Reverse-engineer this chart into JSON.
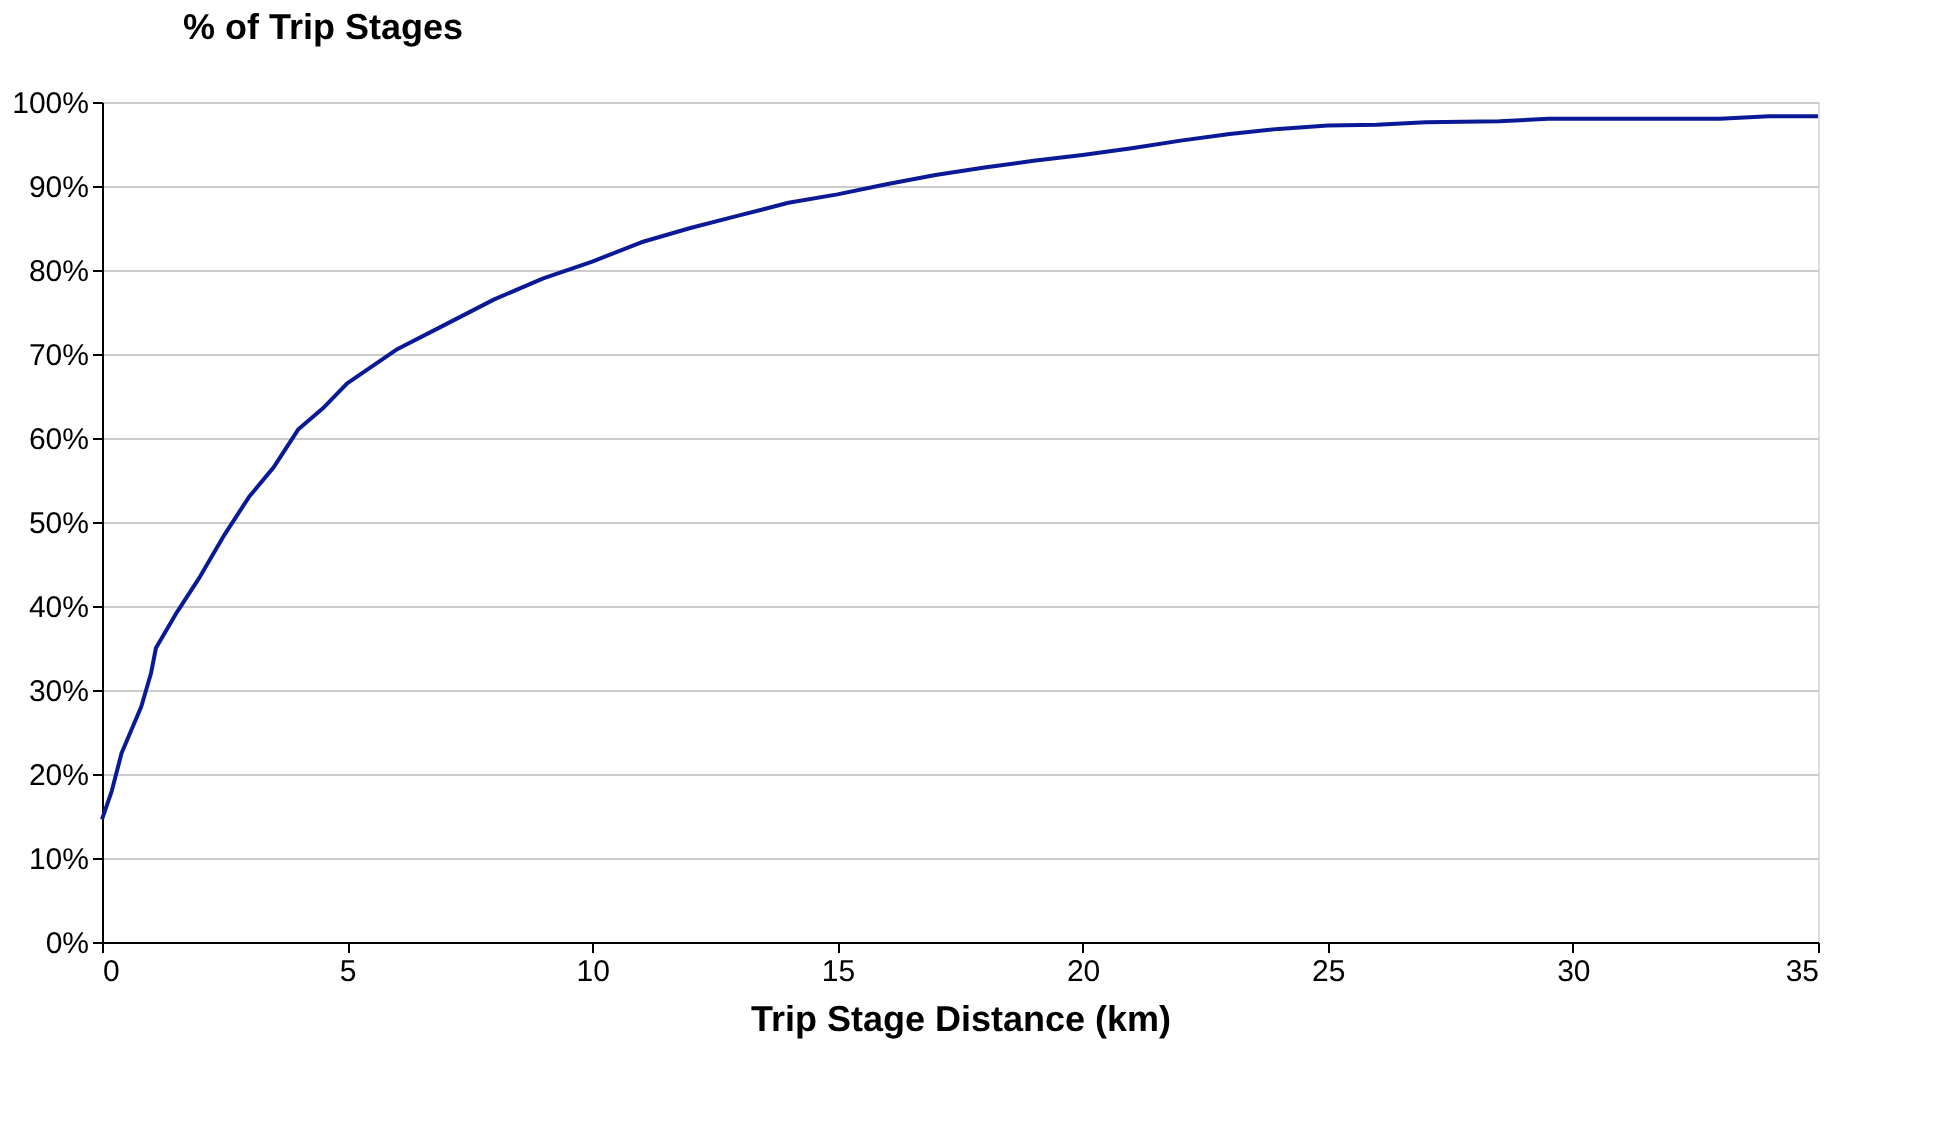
{
  "chart_data": {
    "type": "line",
    "ylabel": "% of Trip Stages",
    "xlabel": "Trip Stage Distance (km)",
    "x": [
      0,
      0.2,
      0.4,
      0.8,
      1.0,
      1.1,
      1.5,
      2,
      2.5,
      3,
      3.5,
      4,
      4.5,
      5,
      6,
      7,
      8,
      9,
      10,
      11,
      12,
      13,
      14,
      15,
      16,
      17,
      18,
      19,
      20,
      21,
      22,
      23,
      24,
      25,
      26,
      27,
      28.5,
      29.5,
      33,
      34,
      35
    ],
    "series": [
      {
        "color": "#0a1a96",
        "values": [
          14.6,
          18,
          22.5,
          28,
          32,
          35,
          39,
          43.5,
          48.5,
          53,
          56.5,
          61,
          63.5,
          66.5,
          70.5,
          73.5,
          76.5,
          79,
          81,
          83.3,
          85,
          86.5,
          88,
          89,
          90.2,
          91.3,
          92.2,
          93.0,
          93.7,
          94.5,
          95.4,
          96.2,
          96.8,
          97.2,
          97.3,
          97.6,
          97.7,
          98,
          98,
          98.3,
          98.3
        ]
      }
    ],
    "xlim": [
      0,
      35
    ],
    "xticks": [
      0,
      5,
      10,
      15,
      20,
      25,
      30,
      35
    ],
    "ylim": [
      0,
      100
    ],
    "yticks": [
      {
        "value": 0,
        "label": "0%"
      },
      {
        "value": 10,
        "label": "10%"
      },
      {
        "value": 20,
        "label": "20%"
      },
      {
        "value": 30,
        "label": "30%"
      },
      {
        "value": 40,
        "label": "40%"
      },
      {
        "value": 50,
        "label": "50%"
      },
      {
        "value": 60,
        "label": "60%"
      },
      {
        "value": 70,
        "label": "70%"
      },
      {
        "value": 80,
        "label": "80%"
      },
      {
        "value": 90,
        "label": "90%"
      },
      {
        "value": 100,
        "label": "100%"
      }
    ],
    "grid": "y",
    "marker": "none",
    "line_style": "solid"
  }
}
